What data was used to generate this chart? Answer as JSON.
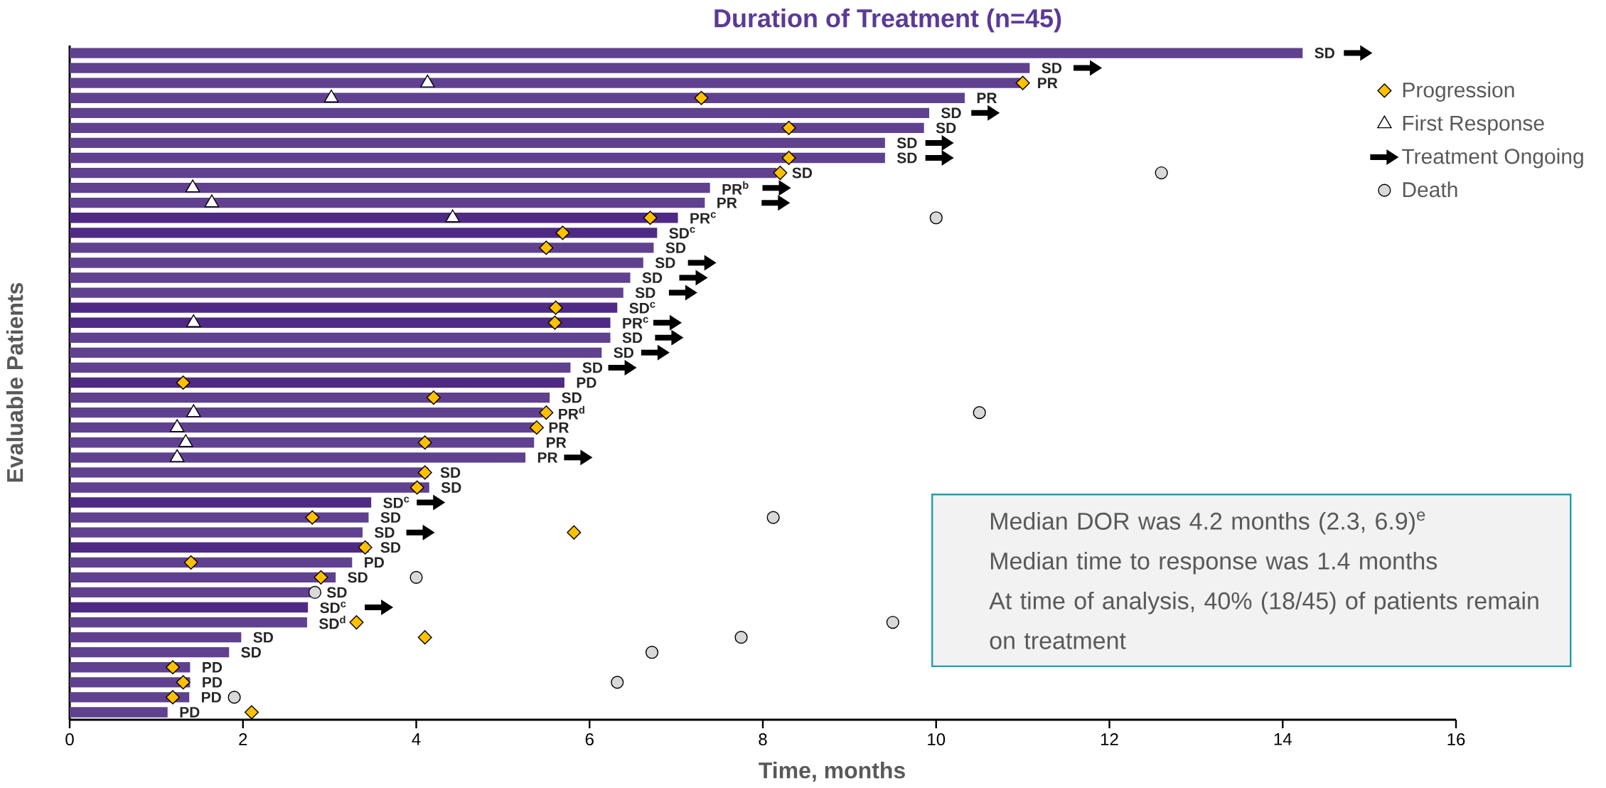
{
  "chart_data": {
    "type": "bar",
    "orientation": "horizontal",
    "title": "Duration of Treatment (n=45)",
    "xlabel": "Time, months",
    "ylabel": "Evaluable Patients",
    "categories": [
      null,
      null,
      null,
      null,
      null,
      null,
      null,
      null,
      null,
      null,
      null,
      null,
      null,
      null,
      null,
      null,
      null,
      null,
      null,
      null,
      null,
      null,
      null,
      null,
      null,
      null,
      null,
      null,
      null,
      null,
      null,
      null,
      null,
      null,
      null,
      null,
      null,
      null,
      null,
      null,
      null,
      null,
      null,
      null,
      null
    ],
    "xlim": [
      0,
      16
    ],
    "xticks": [
      0,
      2,
      4,
      6,
      8,
      10,
      12,
      14,
      16
    ],
    "tick_labels": "x",
    "legend": "top right",
    "series": [
      {
        "type": "bar",
        "colors": [
          "#60418f",
          "#60418f",
          "#60418f",
          "#60418f",
          "#60418f",
          "#60418f",
          "#60418f",
          "#60418f",
          "#60418f",
          "#60418f",
          "#60418f",
          "#4e2a84",
          "#4e2a84",
          "#60418f",
          "#60418f",
          "#60418f",
          "#60418f",
          "#4e2a84",
          "#4e2a84",
          "#60418f",
          "#60418f",
          "#60418f",
          "#4e2a84",
          "#60418f",
          "#60418f",
          "#60418f",
          "#60418f",
          "#60418f",
          "#60418f",
          "#60418f",
          "#4e2a84",
          "#60418f",
          "#60418f",
          "#4e2a84",
          "#60418f",
          "#60418f",
          "#60418f",
          "#4e2a84",
          "#60418f",
          "#60418f",
          "#60418f",
          "#60418f",
          "#60418f",
          "#60418f",
          "#60418f"
        ],
        "values": [
          14.23,
          11.08,
          11.03,
          10.33,
          9.92,
          9.86,
          9.41,
          9.41,
          8.16,
          7.39,
          7.33,
          7.02,
          6.78,
          6.74,
          6.62,
          6.47,
          6.39,
          6.32,
          6.24,
          6.24,
          6.14,
          5.78,
          5.71,
          5.54,
          5.46,
          5.37,
          5.36,
          5.26,
          4.14,
          4.15,
          3.48,
          3.45,
          3.38,
          3.45,
          3.26,
          3.07,
          2.78,
          2.75,
          2.74,
          1.98,
          1.84,
          1.39,
          1.39,
          1.38,
          1.13
        ],
        "value_labels": [
          "SD",
          "SD",
          "PR",
          "PR",
          "SD",
          "SD",
          "SD",
          "SD",
          "SD",
          "PR$^{b}$",
          "PR",
          "PR$^{c}$",
          "SD$^{c}$",
          "SD",
          "SD",
          "SD",
          "SD",
          "SD$^{c}$",
          "PR$^{c}$",
          "SD",
          "SD",
          "SD",
          "PD",
          "SD",
          "PR$^{d}$",
          "PR",
          "PR",
          "PR",
          "SD",
          "SD",
          "SD$^{c}$",
          "SD",
          "SD",
          "SD",
          "PD",
          "SD",
          "SD",
          "SD$^{c}$",
          "SD$^{d}$",
          "SD",
          "SD",
          "PD",
          "PD",
          "PD",
          "PD"
        ]
      },
      {
        "type": "scatter",
        "name": "Progression",
        "color": "#ffc000",
        "marker": "diamond",
        "values": [
          null,
          null,
          11.0,
          7.29,
          null,
          8.3,
          null,
          8.3,
          8.2,
          null,
          null,
          6.7,
          5.69,
          5.5,
          null,
          null,
          null,
          5.61,
          5.6,
          null,
          null,
          null,
          1.31,
          4.2,
          5.5,
          5.39,
          4.1,
          null,
          4.1,
          4.01,
          null,
          2.8,
          5.82,
          3.41,
          1.4,
          2.9,
          null,
          null,
          3.31,
          4.1,
          null,
          1.19,
          1.31,
          1.19,
          2.1
        ]
      },
      {
        "type": "scatter",
        "name": "First Response",
        "color": "#ffffff",
        "marker": "triangle",
        "values": [
          null,
          null,
          4.13,
          3.02,
          null,
          null,
          null,
          null,
          null,
          1.42,
          1.64,
          4.42,
          null,
          null,
          null,
          null,
          null,
          null,
          1.43,
          null,
          null,
          null,
          null,
          null,
          1.43,
          1.24,
          1.34,
          1.24,
          null,
          null,
          null,
          null,
          null,
          null,
          null,
          null,
          null,
          null,
          null,
          null,
          null,
          null,
          null,
          null,
          null
        ]
      },
      {
        "type": "scatter",
        "name": "Treatment Ongoing",
        "color": "#000000",
        "values": [
          14.87,
          11.75,
          null,
          null,
          10.57,
          null,
          10.04,
          10.04,
          null,
          8.16,
          8.15,
          null,
          null,
          null,
          7.3,
          7.2,
          7.08,
          null,
          6.9,
          6.92,
          6.76,
          6.38,
          null,
          null,
          null,
          null,
          null,
          5.87,
          null,
          null,
          4.17,
          null,
          4.05,
          null,
          null,
          null,
          null,
          3.57,
          null,
          null,
          null,
          null,
          null,
          null,
          null
        ]
      },
      {
        "type": "scatter",
        "name": "Death",
        "color": "#d9d9d9",
        "marker": "circle",
        "values": [
          null,
          null,
          null,
          null,
          null,
          null,
          null,
          null,
          12.6,
          null,
          null,
          10.0,
          null,
          null,
          null,
          null,
          null,
          null,
          null,
          null,
          null,
          null,
          null,
          null,
          10.5,
          null,
          null,
          null,
          null,
          null,
          null,
          8.12,
          null,
          null,
          null,
          4.0,
          2.83,
          null,
          9.5,
          7.75,
          6.72,
          null,
          6.32,
          1.9,
          null
        ]
      }
    ],
    "annotations": [
      "Median DOR was 4.2 months (2.3, 6.9)$^{e}$",
      "Median time to response was 1.4 months",
      "At time of analysis, 40% (18/45) of patients remain on treatment"
    ]
  }
}
